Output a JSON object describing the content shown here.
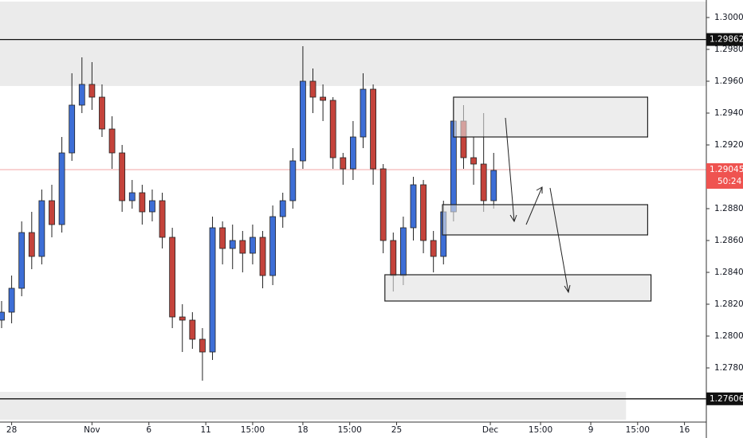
{
  "chart_data": {
    "type": "candlestick",
    "x": [
      0,
      3,
      6,
      9,
      12,
      15,
      18,
      21,
      24,
      27,
      30,
      33,
      36,
      39,
      42,
      45,
      48,
      51,
      54,
      57,
      60,
      63,
      66,
      69,
      72,
      75,
      78,
      81,
      84,
      87,
      90,
      93,
      96,
      99,
      102,
      105,
      108,
      111,
      114,
      117,
      120,
      123,
      126,
      129,
      132,
      135,
      138,
      141,
      144,
      147
    ],
    "open": [
      1.281,
      1.2815,
      1.283,
      1.2865,
      1.285,
      1.2885,
      1.287,
      1.2915,
      1.2945,
      1.2958,
      1.295,
      1.293,
      1.2915,
      1.2885,
      1.289,
      1.2878,
      1.2885,
      1.2862,
      1.2812,
      1.281,
      1.2798,
      1.279,
      1.2868,
      1.2855,
      1.286,
      1.2852,
      1.2862,
      1.2838,
      1.2875,
      1.2885,
      1.291,
      1.296,
      1.295,
      1.2948,
      1.2912,
      1.2905,
      1.2925,
      1.2955,
      1.2905,
      1.286,
      1.2838,
      1.2868,
      1.2895,
      1.286,
      1.285,
      1.2878,
      1.2935,
      1.2912,
      1.2908,
      1.2885
    ],
    "high": [
      1.2822,
      1.2838,
      1.2872,
      1.2878,
      1.2892,
      1.2895,
      1.2925,
      1.2965,
      1.2975,
      1.2972,
      1.2958,
      1.2938,
      1.292,
      1.2898,
      1.2895,
      1.2892,
      1.289,
      1.2868,
      1.282,
      1.2815,
      1.2805,
      1.2875,
      1.2872,
      1.287,
      1.2866,
      1.287,
      1.2866,
      1.2882,
      1.289,
      1.2918,
      1.2982,
      1.2968,
      1.2958,
      1.295,
      1.2915,
      1.2935,
      1.2965,
      1.2958,
      1.2908,
      1.2865,
      1.2875,
      1.29,
      1.2898,
      1.2866,
      1.2885,
      1.2948,
      1.2945,
      1.2925,
      1.294,
      1.2915
    ],
    "low": [
      1.2805,
      1.2808,
      1.2825,
      1.2842,
      1.2845,
      1.2862,
      1.2865,
      1.291,
      1.294,
      1.2942,
      1.2925,
      1.2905,
      1.2878,
      1.288,
      1.287,
      1.2872,
      1.2855,
      1.2805,
      1.279,
      1.2792,
      1.2772,
      1.2785,
      1.2845,
      1.2842,
      1.284,
      1.2845,
      1.283,
      1.2832,
      1.2868,
      1.288,
      1.2905,
      1.294,
      1.2935,
      1.2905,
      1.2895,
      1.2898,
      1.2918,
      1.2895,
      1.2852,
      1.2828,
      1.2832,
      1.286,
      1.2852,
      1.284,
      1.2845,
      1.2872,
      1.2905,
      1.2895,
      1.2878,
      1.288
    ],
    "close": [
      1.2815,
      1.283,
      1.2865,
      1.285,
      1.2885,
      1.287,
      1.2915,
      1.2945,
      1.2958,
      1.295,
      1.293,
      1.2915,
      1.2885,
      1.289,
      1.2878,
      1.2885,
      1.2862,
      1.2812,
      1.281,
      1.2798,
      1.279,
      1.2868,
      1.2855,
      1.286,
      1.2852,
      1.2862,
      1.2838,
      1.2875,
      1.2885,
      1.291,
      1.296,
      1.295,
      1.2948,
      1.2912,
      1.2905,
      1.2925,
      1.2955,
      1.2905,
      1.286,
      1.2838,
      1.2868,
      1.2895,
      1.286,
      1.285,
      1.2878,
      1.2935,
      1.2912,
      1.2908,
      1.2885,
      1.2904
    ],
    "up_color": "#3d6ed6",
    "down_color": "#c4433b",
    "xlim": [
      0,
      211
    ],
    "ylim": [
      1.2746,
      1.3011
    ],
    "xticks": [
      {
        "value": 3,
        "label": "28"
      },
      {
        "value": 27,
        "label": "Nov"
      },
      {
        "value": 44,
        "label": "6"
      },
      {
        "value": 61,
        "label": "11"
      },
      {
        "value": 75,
        "label": "15:00"
      },
      {
        "value": 90,
        "label": "18"
      },
      {
        "value": 104,
        "label": "15:00"
      },
      {
        "value": 118,
        "label": "25"
      },
      {
        "value": 146,
        "label": "Dec"
      },
      {
        "value": 161,
        "label": "15:00"
      },
      {
        "value": 176,
        "label": "9"
      },
      {
        "value": 190,
        "label": "15:00"
      },
      {
        "value": 204,
        "label": "16"
      }
    ],
    "yticks": [
      {
        "value": 1.3,
        "label": "1.30000"
      },
      {
        "value": 1.298,
        "label": "1.29800"
      },
      {
        "value": 1.296,
        "label": "1.29600"
      },
      {
        "value": 1.294,
        "label": "1.29400"
      },
      {
        "value": 1.292,
        "label": "1.29200"
      },
      {
        "value": 1.288,
        "label": "1.28800"
      },
      {
        "value": 1.286,
        "label": "1.28600"
      },
      {
        "value": 1.284,
        "label": "1.28400"
      },
      {
        "value": 1.282,
        "label": "1.28200"
      },
      {
        "value": 1.28,
        "label": "1.28000"
      },
      {
        "value": 1.278,
        "label": "1.27800"
      }
    ],
    "levels": [
      {
        "value": 1.29862,
        "label": "1.29862"
      },
      {
        "value": 1.27606,
        "label": "1.27606"
      }
    ],
    "current_price": {
      "value": 1.29045,
      "label": "1.29045",
      "countdown": "50:24"
    },
    "zones": [
      {
        "x": [
          0,
          211
        ],
        "y": [
          1.2957,
          1.301
        ]
      },
      {
        "x": [
          0,
          187
        ],
        "y": [
          1.27475,
          1.2765
        ]
      }
    ],
    "boxes": [
      {
        "x": [
          135,
          193
        ],
        "y": [
          1.2925,
          1.295
        ]
      },
      {
        "x": [
          131.7,
          193
        ],
        "y": [
          1.28635,
          1.28825
        ]
      },
      {
        "x": [
          114.5,
          194
        ],
        "y": [
          1.2822,
          1.28385
        ]
      }
    ]
  }
}
